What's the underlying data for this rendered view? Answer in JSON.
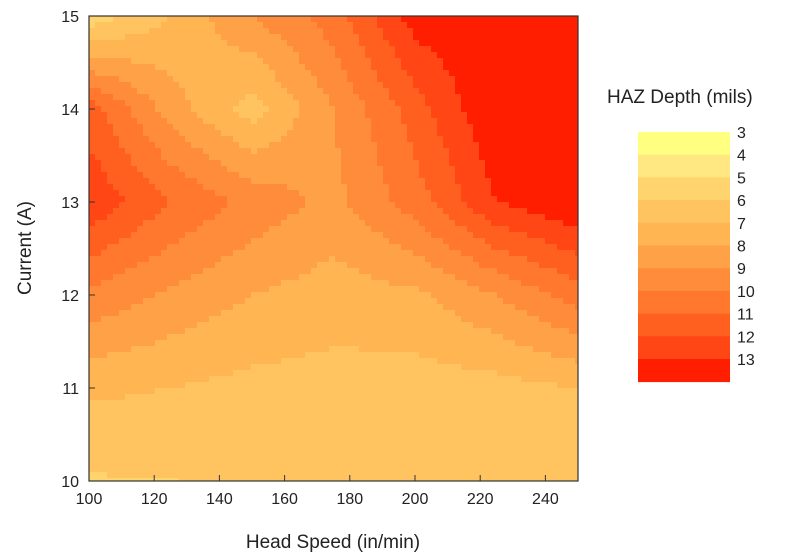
{
  "chart_data": {
    "type": "heatmap",
    "subtype": "filled-contour",
    "title": "",
    "xlabel": "Head Speed (in/min)",
    "ylabel": "Current (A)",
    "xlim": [
      100,
      250
    ],
    "ylim": [
      10,
      15
    ],
    "x_ticks": [
      100,
      120,
      140,
      160,
      180,
      200,
      220,
      240
    ],
    "y_ticks": [
      10,
      11,
      12,
      13,
      14,
      15
    ],
    "grid": false,
    "colorbar": {
      "title": "HAZ Depth (mils)",
      "placement": "right",
      "levels": [
        3,
        4,
        5,
        6,
        7,
        8,
        9,
        10,
        11,
        12,
        13
      ],
      "colors": [
        "#ffff80",
        "#ffe882",
        "#ffd46e",
        "#ffc45f",
        "#ffb552",
        "#ffa146",
        "#ff8c3a",
        "#ff782e",
        "#ff6020",
        "#ff4614",
        "#ff1e00"
      ]
    },
    "x": [
      100,
      125,
      150,
      175,
      200,
      225,
      250
    ],
    "y": [
      10,
      11,
      12,
      13,
      14,
      15
    ],
    "z": [
      [
        5.4,
        5.5,
        5.5,
        5.8,
        5.9,
        5.9,
        5.7
      ],
      [
        6.7,
        6.5,
        6.2,
        6.1,
        6.0,
        6.1,
        6.5
      ],
      [
        9.3,
        8.3,
        7.5,
        7.0,
        7.3,
        8.5,
        10.0
      ],
      [
        12.3,
        10.5,
        9.2,
        8.2,
        10.0,
        12.5,
        13.5
      ],
      [
        11.0,
        8.0,
        6.0,
        8.5,
        11.0,
        13.5,
        13.5
      ],
      [
        4.8,
        6.5,
        8.5,
        10.0,
        13.0,
        13.5,
        13.5
      ]
    ]
  }
}
